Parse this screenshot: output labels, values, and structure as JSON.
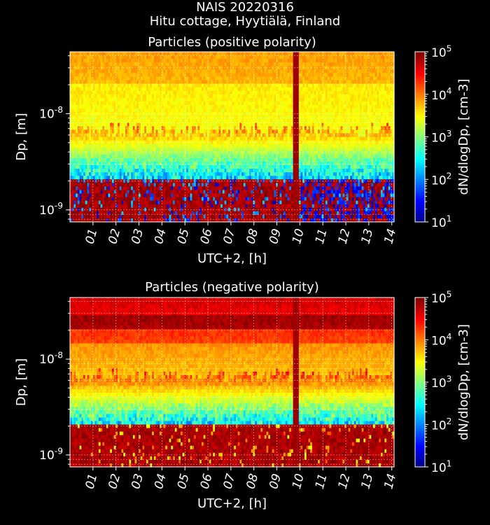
{
  "figure": {
    "title_line1": "NAIS 20220316",
    "title_line2": "Hitu cottage, Hyytiälä, Finland"
  },
  "chart_data": [
    {
      "type": "heatmap",
      "title": "Particles (positive polarity)",
      "xlabel": "UTC+2, [h]",
      "ylabel": "Dp, [m]",
      "x_ticks": [
        "01",
        "02",
        "03",
        "04",
        "05",
        "06",
        "07",
        "08",
        "09",
        "10",
        "11",
        "12",
        "13",
        "14"
      ],
      "x_range_h": [
        0,
        14.1
      ],
      "y_scale": "log",
      "y_range_m": [
        7.5e-10,
        4.4e-08
      ],
      "y_tick_labels": [
        "10^-9",
        "10^-8"
      ],
      "colorbar": {
        "label": "dN/dlogDp, [cm-3]",
        "scale": "log",
        "range": [
          10,
          100000
        ],
        "tick_labels": [
          "10^1",
          "10^2",
          "10^3",
          "10^4",
          "10^5"
        ],
        "colormap": "jet"
      },
      "grid": true,
      "event_time_h": 9.75
    },
    {
      "type": "heatmap",
      "title": "Particles (negative polarity)",
      "xlabel": "UTC+2, [h]",
      "ylabel": "Dp, [m]",
      "x_ticks": [
        "01",
        "02",
        "03",
        "04",
        "05",
        "06",
        "07",
        "08",
        "09",
        "10",
        "11",
        "12",
        "13",
        "14"
      ],
      "x_range_h": [
        0,
        14.1
      ],
      "y_scale": "log",
      "y_range_m": [
        7.5e-10,
        4.4e-08
      ],
      "y_tick_labels": [
        "10^-9",
        "10^-8"
      ],
      "colorbar": {
        "label": "dN/dlogDp, [cm-3]",
        "scale": "log",
        "range": [
          10,
          100000
        ],
        "tick_labels": [
          "10^1",
          "10^2",
          "10^3",
          "10^4",
          "10^5"
        ],
        "colormap": "jet"
      },
      "grid": true,
      "event_time_h": 9.75
    }
  ]
}
